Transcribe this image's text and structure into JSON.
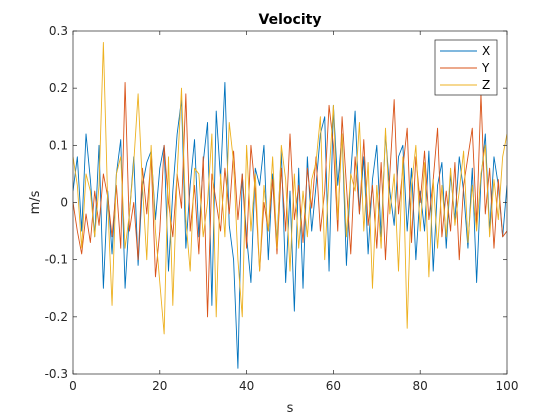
{
  "chart_data": {
    "type": "line",
    "title": "Velocity",
    "xlabel": "s",
    "ylabel": "m/s",
    "xlim": [
      0,
      100
    ],
    "ylim": [
      -0.3,
      0.3
    ],
    "xticks": [
      0,
      20,
      40,
      60,
      80,
      100
    ],
    "yticks": [
      -0.3,
      -0.2,
      -0.1,
      0,
      0.1,
      0.2,
      0.3
    ],
    "xtick_labels": [
      "0",
      "20",
      "40",
      "60",
      "80",
      "100"
    ],
    "ytick_labels": [
      "-0.3",
      "-0.2",
      "-0.1",
      "0",
      "0.1",
      "0.2",
      "0.3"
    ],
    "grid": false,
    "legend_position": "top-right",
    "x": [
      0,
      1,
      2,
      3,
      4,
      5,
      6,
      7,
      8,
      9,
      10,
      11,
      12,
      13,
      14,
      15,
      16,
      17,
      18,
      19,
      20,
      21,
      22,
      23,
      24,
      25,
      26,
      27,
      28,
      29,
      30,
      31,
      32,
      33,
      34,
      35,
      36,
      37,
      38,
      39,
      40,
      41,
      42,
      43,
      44,
      45,
      46,
      47,
      48,
      49,
      50,
      51,
      52,
      53,
      54,
      55,
      56,
      57,
      58,
      59,
      60,
      61,
      62,
      63,
      64,
      65,
      66,
      67,
      68,
      69,
      70,
      71,
      72,
      73,
      74,
      75,
      76,
      77,
      78,
      79,
      80,
      81,
      82,
      83,
      84,
      85,
      86,
      87,
      88,
      89,
      90,
      91,
      92,
      93,
      94,
      95,
      96,
      97,
      98,
      99,
      100
    ],
    "series": [
      {
        "name": "X",
        "color": "#0072BD",
        "values": [
          0.02,
          0.08,
          -0.05,
          0.12,
          0.04,
          -0.06,
          0.1,
          -0.15,
          0.02,
          -0.09,
          0.05,
          0.11,
          -0.15,
          -0.02,
          0.08,
          -0.11,
          0.03,
          0.07,
          0.09,
          -0.03,
          0.06,
          0.1,
          -0.12,
          0.02,
          0.12,
          0.18,
          -0.08,
          0.03,
          0.11,
          -0.06,
          0.07,
          0.14,
          -0.18,
          0.16,
          0.04,
          0.21,
          -0.04,
          -0.1,
          -0.29,
          0.05,
          -0.06,
          -0.14,
          0.06,
          0.03,
          0.1,
          -0.1,
          0.05,
          -0.07,
          0.09,
          -0.14,
          0.02,
          -0.19,
          0.06,
          -0.15,
          0.08,
          -0.05,
          0.03,
          0.12,
          0.15,
          -0.12,
          0.17,
          0.03,
          0.12,
          -0.11,
          0.05,
          0.16,
          -0.02,
          0.08,
          -0.09,
          0.04,
          0.1,
          -0.06,
          0.12,
          0.02,
          -0.04,
          0.08,
          0.1,
          -0.05,
          0.06,
          -0.1,
          0.02,
          -0.05,
          0.09,
          -0.12,
          0.03,
          0.07,
          -0.08,
          0.05,
          -0.03,
          0.08,
          0.02,
          -0.08,
          0.06,
          -0.14,
          0.04,
          0.12,
          -0.05,
          0.08,
          0.03,
          -0.06,
          0.03
        ]
      },
      {
        "name": "Y",
        "color": "#D95319",
        "values": [
          0.0,
          -0.05,
          -0.09,
          -0.02,
          -0.07,
          0.02,
          -0.04,
          0.05,
          0.01,
          -0.06,
          0.03,
          -0.08,
          0.21,
          -0.05,
          0.0,
          -0.1,
          0.06,
          -0.02,
          0.08,
          -0.13,
          -0.05,
          0.1,
          0.0,
          -0.06,
          0.05,
          -0.01,
          0.19,
          -0.05,
          0.03,
          -0.09,
          0.08,
          -0.2,
          0.05,
          0.0,
          -0.05,
          0.06,
          -0.02,
          0.09,
          -0.03,
          0.05,
          -0.08,
          0.1,
          0.02,
          -0.12,
          0.0,
          -0.05,
          0.04,
          -0.09,
          0.06,
          -0.05,
          0.12,
          -0.03,
          0.03,
          -0.07,
          0.06,
          -0.01,
          0.08,
          -0.05,
          0.02,
          0.17,
          0.1,
          -0.05,
          0.15,
          0.03,
          -0.09,
          0.08,
          -0.02,
          0.11,
          -0.04,
          0.03,
          -0.08,
          0.07,
          -0.1,
          0.05,
          0.18,
          -0.02,
          0.06,
          0.13,
          -0.07,
          0.08,
          0.0,
          0.09,
          -0.03,
          0.04,
          0.13,
          -0.06,
          0.02,
          -0.05,
          0.07,
          -0.1,
          0.03,
          0.08,
          0.13,
          -0.04,
          0.19,
          -0.02,
          0.06,
          -0.08,
          0.04,
          -0.06,
          -0.05
        ]
      },
      {
        "name": "Z",
        "color": "#EDB120",
        "values": [
          0.08,
          0.03,
          -0.08,
          0.05,
          0.02,
          -0.06,
          0.03,
          0.28,
          0.0,
          -0.18,
          0.05,
          0.08,
          -0.08,
          -0.02,
          0.07,
          0.19,
          0.03,
          -0.1,
          0.1,
          -0.05,
          -0.14,
          -0.23,
          0.08,
          -0.18,
          0.05,
          0.2,
          -0.03,
          -0.12,
          0.06,
          0.05,
          -0.06,
          0.0,
          0.12,
          -0.2,
          0.05,
          -0.06,
          0.14,
          0.07,
          -0.1,
          -0.2,
          0.1,
          -0.05,
          0.05,
          -0.12,
          0.03,
          -0.05,
          0.08,
          -0.08,
          0.1,
          0.04,
          -0.12,
          0.05,
          -0.08,
          0.02,
          -0.06,
          0.04,
          0.07,
          0.15,
          -0.1,
          0.05,
          0.17,
          -0.03,
          0.12,
          -0.06,
          0.05,
          0.02,
          0.14,
          -0.05,
          0.07,
          -0.15,
          0.03,
          -0.08,
          0.13,
          -0.02,
          0.05,
          -0.12,
          0.08,
          -0.22,
          0.03,
          0.1,
          -0.05,
          0.07,
          -0.13,
          0.04,
          -0.08,
          0.03,
          -0.06,
          0.06,
          -0.04,
          0.02,
          0.09,
          -0.07,
          0.03,
          -0.05,
          0.05,
          0.1,
          -0.06,
          0.04,
          -0.03,
          0.08,
          0.12
        ]
      }
    ]
  }
}
